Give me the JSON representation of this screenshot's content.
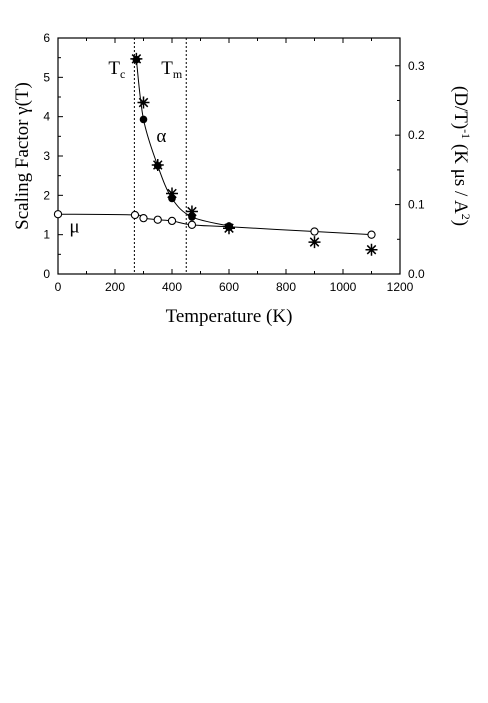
{
  "chart_data": {
    "type": "scatter",
    "title": "",
    "xlabel": "Temperature (K)",
    "ylabel_left": {
      "main": "Scaling Factor  γ(T)"
    },
    "ylabel_right": {
      "part1": "(D/T)",
      "sup1": "-1",
      "part2": " (K μs / A",
      "sup2": "2",
      "part3": ")"
    },
    "xlim": [
      0,
      1200
    ],
    "ylim_left": [
      0,
      6
    ],
    "ylim_right": [
      0,
      0.34
    ],
    "xticks": [
      0,
      200,
      400,
      600,
      800,
      1000,
      1200
    ],
    "yticks_left": [
      0,
      1,
      2,
      3,
      4,
      5,
      6
    ],
    "yticks_right": [
      "0.0",
      "0.1",
      "0.2",
      "0.3"
    ],
    "yticks_right_values": [
      0.0,
      0.1,
      0.2,
      0.3
    ],
    "grid": false,
    "vlines": [
      {
        "x": 268,
        "label": "T",
        "sub": "c"
      },
      {
        "x": 450,
        "label": "T",
        "sub": "m"
      }
    ],
    "series": [
      {
        "name": "μ",
        "marker": "open-circle",
        "connect": true,
        "x": [
          0,
          270,
          300,
          350,
          400,
          470,
          600,
          900,
          1100
        ],
        "y": [
          1.52,
          1.5,
          1.42,
          1.38,
          1.35,
          1.25,
          1.2,
          1.08,
          1.0
        ]
      },
      {
        "name": "α",
        "marker": "filled-circle",
        "connect": true,
        "x": [
          275,
          300,
          350,
          400,
          470,
          600
        ],
        "y": [
          5.45,
          3.93,
          2.75,
          1.92,
          1.45,
          1.22
        ]
      },
      {
        "name": "",
        "marker": "asterisk",
        "connect": false,
        "axis": "right",
        "x": [
          275,
          300,
          350,
          400,
          470,
          600,
          900,
          1100
        ],
        "y": [
          0.31,
          0.247,
          0.157,
          0.116,
          0.09,
          0.066,
          0.046,
          0.035
        ]
      }
    ]
  }
}
